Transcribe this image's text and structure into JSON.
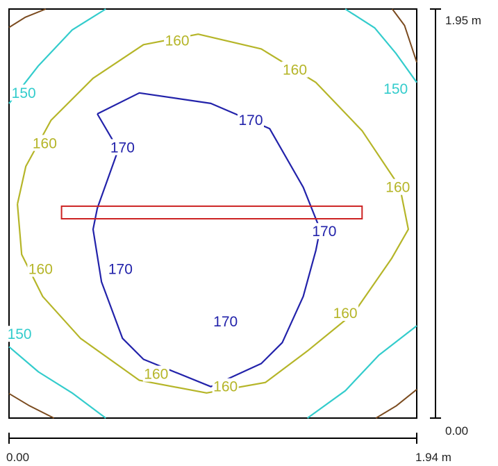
{
  "chart_data": {
    "type": "contour",
    "x_range": [
      0,
      1.94
    ],
    "y_range": [
      0,
      1.95
    ],
    "units": "m",
    "x_axis": {
      "start_label": "0.00",
      "end_label": "1.94 m"
    },
    "y_axis": {
      "start_label": "0.00",
      "end_label": "1.95 m"
    },
    "levels": [
      {
        "value": 150,
        "label": "150",
        "color": "#33cccc"
      },
      {
        "value": 160,
        "label": "160",
        "color": "#b5b528"
      },
      {
        "value": 170,
        "label": "170",
        "color": "#2222aa"
      }
    ],
    "corner_contour_color": "#7a4a1e",
    "contours": [
      {
        "level": 170,
        "label": "170",
        "points": [
          [
            0.42,
            1.45
          ],
          [
            0.62,
            1.55
          ],
          [
            0.96,
            1.5
          ],
          [
            1.24,
            1.38
          ],
          [
            1.4,
            1.1
          ],
          [
            1.48,
            0.9
          ],
          [
            1.46,
            0.8
          ],
          [
            1.4,
            0.58
          ],
          [
            1.3,
            0.36
          ],
          [
            1.2,
            0.26
          ],
          [
            0.96,
            0.15
          ],
          [
            0.64,
            0.28
          ],
          [
            0.54,
            0.38
          ],
          [
            0.44,
            0.65
          ],
          [
            0.4,
            0.9
          ],
          [
            0.42,
            1.0
          ],
          [
            0.52,
            1.28
          ],
          [
            0.42,
            1.45
          ]
        ]
      },
      {
        "level": 160,
        "label": "160",
        "points": [
          [
            0.04,
            1.02
          ],
          [
            0.08,
            1.2
          ],
          [
            0.2,
            1.42
          ],
          [
            0.4,
            1.62
          ],
          [
            0.64,
            1.78
          ],
          [
            0.9,
            1.83
          ],
          [
            1.2,
            1.76
          ],
          [
            1.46,
            1.6
          ],
          [
            1.68,
            1.37
          ],
          [
            1.86,
            1.1
          ],
          [
            1.9,
            0.9
          ],
          [
            1.82,
            0.76
          ],
          [
            1.64,
            0.5
          ],
          [
            1.42,
            0.32
          ],
          [
            1.22,
            0.17
          ],
          [
            0.94,
            0.12
          ],
          [
            0.62,
            0.18
          ],
          [
            0.34,
            0.38
          ],
          [
            0.16,
            0.58
          ],
          [
            0.06,
            0.78
          ],
          [
            0.04,
            1.02
          ]
        ]
      },
      {
        "level": 150,
        "label": "150 top-left",
        "points": [
          [
            0.0,
            1.5
          ],
          [
            0.14,
            1.68
          ],
          [
            0.3,
            1.85
          ],
          [
            0.46,
            1.95
          ]
        ]
      },
      {
        "level": 150,
        "label": "150 top-right",
        "points": [
          [
            1.6,
            1.95
          ],
          [
            1.74,
            1.86
          ],
          [
            1.84,
            1.74
          ],
          [
            1.94,
            1.6
          ]
        ]
      },
      {
        "level": 150,
        "label": "150 bottom-left",
        "points": [
          [
            0.0,
            0.34
          ],
          [
            0.14,
            0.22
          ],
          [
            0.3,
            0.12
          ],
          [
            0.46,
            0.0
          ]
        ]
      },
      {
        "level": 150,
        "label": "150 bottom-right",
        "points": [
          [
            1.42,
            0.0
          ],
          [
            1.6,
            0.13
          ],
          [
            1.76,
            0.3
          ],
          [
            1.94,
            0.44
          ]
        ]
      }
    ],
    "contour_labels": [
      {
        "text": "160",
        "x": 0.8,
        "y": 1.8
      },
      {
        "text": "160",
        "x": 1.36,
        "y": 1.66
      },
      {
        "text": "160",
        "x": 0.17,
        "y": 1.31
      },
      {
        "text": "160",
        "x": 1.85,
        "y": 1.1
      },
      {
        "text": "160",
        "x": 0.15,
        "y": 0.71
      },
      {
        "text": "160",
        "x": 1.6,
        "y": 0.5
      },
      {
        "text": "160",
        "x": 0.7,
        "y": 0.21
      },
      {
        "text": "160",
        "x": 1.03,
        "y": 0.15
      },
      {
        "text": "170",
        "x": 1.15,
        "y": 1.42
      },
      {
        "text": "170",
        "x": 0.54,
        "y": 1.29
      },
      {
        "text": "170",
        "x": 1.5,
        "y": 0.89
      },
      {
        "text": "170",
        "x": 0.53,
        "y": 0.71
      },
      {
        "text": "170",
        "x": 1.03,
        "y": 0.46
      },
      {
        "text": "150",
        "x": 0.07,
        "y": 1.55
      },
      {
        "text": "150",
        "x": 1.84,
        "y": 1.57
      },
      {
        "text": "150",
        "x": 0.05,
        "y": 0.4
      }
    ],
    "highlight_box": {
      "x0": 0.25,
      "x1": 1.68,
      "y0": 0.95,
      "y1": 1.01,
      "color": "#cc2222"
    }
  }
}
